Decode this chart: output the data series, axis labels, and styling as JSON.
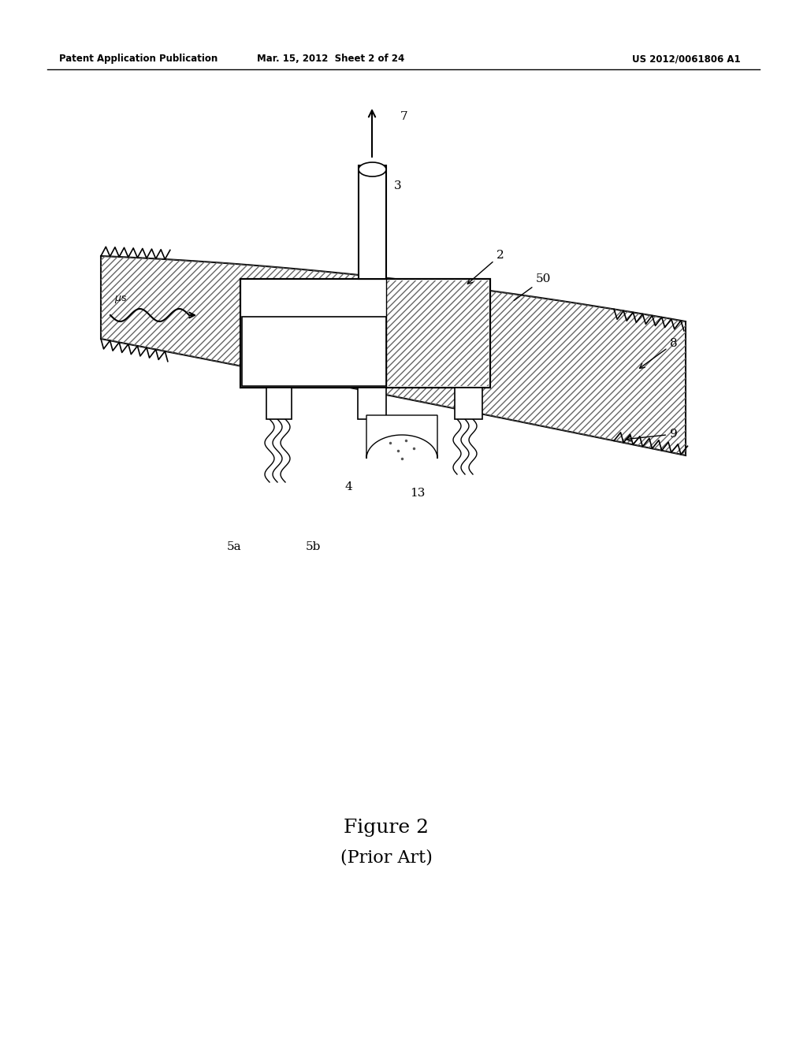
{
  "header_left": "Patent Application Publication",
  "header_center": "Mar. 15, 2012  Sheet 2 of 24",
  "header_right": "US 2012/0061806 A1",
  "figure_label": "Figure 2",
  "figure_sublabel": "(Prior Art)",
  "bg_color": "#ffffff",
  "line_color": "#000000"
}
